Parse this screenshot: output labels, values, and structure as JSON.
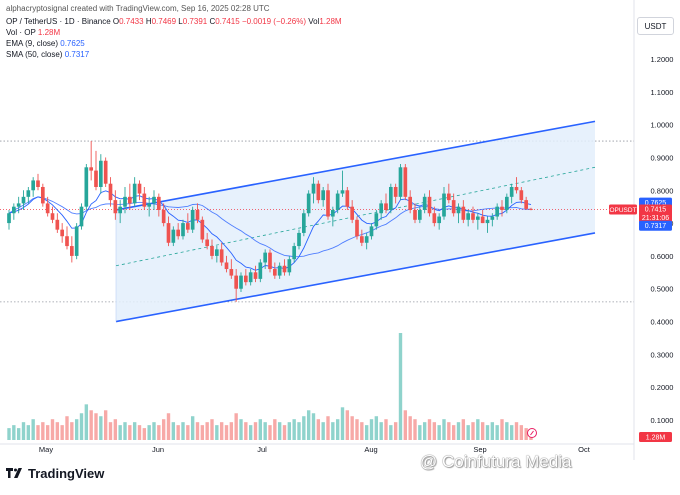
{
  "header": {
    "attribution": "alphacryptosignal created with TradingView.com, Sep 16, 2025 02:28 UTC",
    "symbol": "OP / TetherUS · 1D · Binance",
    "ohlc": {
      "o_label": "O",
      "o": "0.7433",
      "h_label": "H",
      "h": "0.7469",
      "l_label": "L",
      "l": "0.7391",
      "c_label": "C",
      "c": "0.7415",
      "chg": "−0.0019 (−0.26%)",
      "vol_label": "Vol",
      "vol": "1.28M"
    },
    "vol_indicator": {
      "label": "Vol · OP",
      "value": "1.28M"
    },
    "ema": {
      "label": "EMA (9, close)",
      "value": "0.7625"
    },
    "sma": {
      "label": "SMA (50, close)",
      "value": "0.7317"
    }
  },
  "currency_button": "USDT",
  "price_tags": {
    "ema": "0.7625",
    "symbol": "OPUSDT",
    "last": "0.7415",
    "countdown": "21:31:06",
    "sma": "0.7317",
    "volume": "1.28M"
  },
  "logo_text": "TradingView",
  "watermark": "@ Coinfutura Media",
  "colors": {
    "up": "#26a69a",
    "down": "#ef5350",
    "channel": "#2962ff",
    "channel_fill": "#e3eefc",
    "ema": "#2962ff",
    "vol_up": "#8fd3cc",
    "vol_down": "#f7a9a7"
  },
  "chart_data": {
    "type": "candlestick",
    "y_axis": {
      "ticks": [
        "1.2000",
        "1.1000",
        "1.0000",
        "0.9000",
        "0.8000",
        "0.7000",
        "0.6000",
        "0.5000",
        "0.4000",
        "0.3000",
        "0.2000",
        "0.1000"
      ],
      "range": [
        0.05,
        1.28
      ]
    },
    "x_axis": {
      "ticks": [
        "May",
        "Jun",
        "Jul",
        "Aug",
        "Sep",
        "Oct"
      ]
    },
    "horizontal_levels": [
      0.95,
      0.46
    ],
    "channel": {
      "upper": [
        [
          "May 22",
          0.74
        ],
        [
          "Sep 30",
          1.01
        ]
      ],
      "lower": [
        [
          "May 22",
          0.4
        ],
        [
          "Sep 30",
          0.67
        ]
      ],
      "mid": [
        [
          "May 22",
          0.57
        ],
        [
          "Sep 30",
          0.87
        ]
      ]
    },
    "candles": [
      [
        0.7,
        0.74,
        0.68,
        0.73
      ],
      [
        0.73,
        0.76,
        0.71,
        0.75
      ],
      [
        0.75,
        0.78,
        0.73,
        0.76
      ],
      [
        0.76,
        0.8,
        0.74,
        0.78
      ],
      [
        0.78,
        0.81,
        0.76,
        0.8
      ],
      [
        0.8,
        0.84,
        0.78,
        0.83
      ],
      [
        0.83,
        0.85,
        0.8,
        0.81
      ],
      [
        0.81,
        0.82,
        0.75,
        0.76
      ],
      [
        0.76,
        0.78,
        0.72,
        0.73
      ],
      [
        0.73,
        0.75,
        0.7,
        0.71
      ],
      [
        0.71,
        0.73,
        0.67,
        0.68
      ],
      [
        0.68,
        0.7,
        0.64,
        0.66
      ],
      [
        0.66,
        0.69,
        0.62,
        0.63
      ],
      [
        0.63,
        0.66,
        0.58,
        0.6
      ],
      [
        0.6,
        0.7,
        0.59,
        0.69
      ],
      [
        0.69,
        0.76,
        0.68,
        0.75
      ],
      [
        0.75,
        0.88,
        0.74,
        0.87
      ],
      [
        0.87,
        0.95,
        0.83,
        0.86
      ],
      [
        0.86,
        0.92,
        0.8,
        0.81
      ],
      [
        0.81,
        0.91,
        0.79,
        0.89
      ],
      [
        0.89,
        0.9,
        0.81,
        0.82
      ],
      [
        0.82,
        0.84,
        0.75,
        0.77
      ],
      [
        0.77,
        0.8,
        0.71,
        0.73
      ],
      [
        0.73,
        0.77,
        0.7,
        0.75
      ],
      [
        0.75,
        0.81,
        0.73,
        0.78
      ],
      [
        0.78,
        0.82,
        0.74,
        0.76
      ],
      [
        0.76,
        0.84,
        0.75,
        0.82
      ],
      [
        0.82,
        0.83,
        0.77,
        0.79
      ],
      [
        0.79,
        0.81,
        0.74,
        0.75
      ],
      [
        0.75,
        0.78,
        0.72,
        0.76
      ],
      [
        0.76,
        0.8,
        0.74,
        0.78
      ],
      [
        0.78,
        0.79,
        0.72,
        0.74
      ],
      [
        0.74,
        0.76,
        0.69,
        0.7
      ],
      [
        0.7,
        0.72,
        0.63,
        0.64
      ],
      [
        0.64,
        0.69,
        0.63,
        0.68
      ],
      [
        0.68,
        0.7,
        0.65,
        0.66
      ],
      [
        0.66,
        0.71,
        0.65,
        0.7
      ],
      [
        0.7,
        0.73,
        0.67,
        0.68
      ],
      [
        0.68,
        0.75,
        0.67,
        0.74
      ],
      [
        0.74,
        0.76,
        0.7,
        0.71
      ],
      [
        0.71,
        0.72,
        0.64,
        0.65
      ],
      [
        0.65,
        0.67,
        0.62,
        0.63
      ],
      [
        0.63,
        0.65,
        0.59,
        0.6
      ],
      [
        0.6,
        0.63,
        0.58,
        0.62
      ],
      [
        0.62,
        0.64,
        0.57,
        0.58
      ],
      [
        0.58,
        0.6,
        0.55,
        0.56
      ],
      [
        0.56,
        0.59,
        0.53,
        0.54
      ],
      [
        0.54,
        0.56,
        0.46,
        0.5
      ],
      [
        0.5,
        0.55,
        0.49,
        0.54
      ],
      [
        0.54,
        0.56,
        0.51,
        0.52
      ],
      [
        0.52,
        0.56,
        0.51,
        0.55
      ],
      [
        0.55,
        0.57,
        0.52,
        0.53
      ],
      [
        0.53,
        0.59,
        0.52,
        0.58
      ],
      [
        0.58,
        0.62,
        0.56,
        0.61
      ],
      [
        0.61,
        0.62,
        0.55,
        0.56
      ],
      [
        0.56,
        0.58,
        0.53,
        0.54
      ],
      [
        0.54,
        0.58,
        0.53,
        0.57
      ],
      [
        0.57,
        0.59,
        0.54,
        0.55
      ],
      [
        0.55,
        0.6,
        0.54,
        0.59
      ],
      [
        0.59,
        0.64,
        0.58,
        0.63
      ],
      [
        0.63,
        0.68,
        0.62,
        0.67
      ],
      [
        0.67,
        0.74,
        0.66,
        0.73
      ],
      [
        0.73,
        0.8,
        0.72,
        0.79
      ],
      [
        0.79,
        0.84,
        0.76,
        0.82
      ],
      [
        0.82,
        0.83,
        0.76,
        0.77
      ],
      [
        0.77,
        0.81,
        0.75,
        0.8
      ],
      [
        0.8,
        0.82,
        0.71,
        0.72
      ],
      [
        0.72,
        0.75,
        0.69,
        0.74
      ],
      [
        0.74,
        0.8,
        0.73,
        0.79
      ],
      [
        0.79,
        0.86,
        0.78,
        0.8
      ],
      [
        0.8,
        0.81,
        0.74,
        0.75
      ],
      [
        0.75,
        0.77,
        0.7,
        0.71
      ],
      [
        0.71,
        0.72,
        0.65,
        0.66
      ],
      [
        0.66,
        0.68,
        0.63,
        0.64
      ],
      [
        0.64,
        0.67,
        0.62,
        0.66
      ],
      [
        0.66,
        0.7,
        0.65,
        0.69
      ],
      [
        0.69,
        0.74,
        0.68,
        0.73
      ],
      [
        0.73,
        0.77,
        0.71,
        0.76
      ],
      [
        0.76,
        0.79,
        0.73,
        0.74
      ],
      [
        0.74,
        0.82,
        0.73,
        0.81
      ],
      [
        0.81,
        0.82,
        0.76,
        0.78
      ],
      [
        0.78,
        0.88,
        0.77,
        0.87
      ],
      [
        0.87,
        0.88,
        0.77,
        0.78
      ],
      [
        0.78,
        0.8,
        0.73,
        0.74
      ],
      [
        0.74,
        0.76,
        0.7,
        0.71
      ],
      [
        0.71,
        0.75,
        0.7,
        0.74
      ],
      [
        0.74,
        0.79,
        0.73,
        0.78
      ],
      [
        0.78,
        0.8,
        0.72,
        0.73
      ],
      [
        0.73,
        0.75,
        0.69,
        0.7
      ],
      [
        0.7,
        0.73,
        0.68,
        0.72
      ],
      [
        0.72,
        0.81,
        0.71,
        0.79
      ],
      [
        0.79,
        0.82,
        0.76,
        0.77
      ],
      [
        0.77,
        0.79,
        0.72,
        0.73
      ],
      [
        0.73,
        0.76,
        0.7,
        0.75
      ],
      [
        0.75,
        0.77,
        0.7,
        0.71
      ],
      [
        0.71,
        0.74,
        0.69,
        0.73
      ],
      [
        0.73,
        0.75,
        0.7,
        0.71
      ],
      [
        0.71,
        0.73,
        0.68,
        0.72
      ],
      [
        0.72,
        0.74,
        0.7,
        0.7
      ],
      [
        0.7,
        0.72,
        0.67,
        0.71
      ],
      [
        0.71,
        0.73,
        0.69,
        0.72
      ],
      [
        0.72,
        0.76,
        0.71,
        0.75
      ],
      [
        0.75,
        0.77,
        0.72,
        0.74
      ],
      [
        0.74,
        0.79,
        0.73,
        0.78
      ],
      [
        0.78,
        0.82,
        0.76,
        0.81
      ],
      [
        0.81,
        0.84,
        0.79,
        0.8
      ],
      [
        0.8,
        0.81,
        0.76,
        0.77
      ],
      [
        0.77,
        0.78,
        0.74,
        0.7433
      ],
      [
        0.7433,
        0.7469,
        0.7391,
        0.7415
      ]
    ],
    "volume": [
      0.04,
      0.05,
      0.04,
      0.06,
      0.05,
      0.07,
      0.05,
      0.06,
      0.05,
      0.07,
      0.06,
      0.05,
      0.08,
      0.06,
      0.07,
      0.09,
      0.12,
      0.1,
      0.09,
      0.08,
      0.1,
      0.06,
      0.07,
      0.05,
      0.06,
      0.05,
      0.06,
      0.05,
      0.04,
      0.05,
      0.06,
      0.05,
      0.07,
      0.09,
      0.06,
      0.05,
      0.06,
      0.05,
      0.08,
      0.06,
      0.05,
      0.06,
      0.07,
      0.05,
      0.06,
      0.05,
      0.06,
      0.09,
      0.07,
      0.06,
      0.05,
      0.06,
      0.07,
      0.06,
      0.05,
      0.07,
      0.06,
      0.05,
      0.06,
      0.07,
      0.06,
      0.08,
      0.1,
      0.09,
      0.07,
      0.06,
      0.08,
      0.06,
      0.07,
      0.11,
      0.1,
      0.08,
      0.07,
      0.06,
      0.05,
      0.07,
      0.08,
      0.06,
      0.07,
      0.05,
      0.06,
      0.36,
      0.1,
      0.08,
      0.07,
      0.05,
      0.06,
      0.07,
      0.06,
      0.05,
      0.07,
      0.06,
      0.05,
      0.06,
      0.07,
      0.05,
      0.06,
      0.07,
      0.06,
      0.05,
      0.06,
      0.05,
      0.07,
      0.06,
      0.05,
      0.06,
      0.05,
      0.04,
      0.03
    ]
  }
}
